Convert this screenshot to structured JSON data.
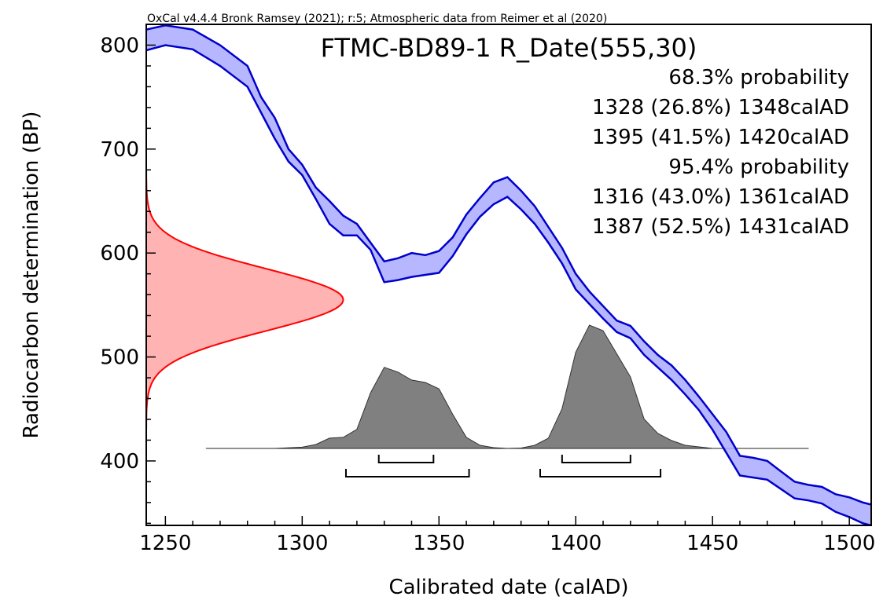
{
  "chart_data": {
    "type": "area",
    "header_note": "OxCal v4.4.4 Bronk Ramsey (2021); r:5; Atmospheric data from Reimer et al (2020)",
    "title": "FTMC-BD89-1 R_Date(555,30)",
    "xlabel": "Calibrated date (calAD)",
    "ylabel": "Radiocarbon determination (BP)",
    "xlim": [
      1243,
      1508
    ],
    "ylim": [
      338,
      820
    ],
    "x_ticks": [
      1250,
      1300,
      1350,
      1400,
      1450,
      1500
    ],
    "y_ticks": [
      400,
      500,
      600,
      700,
      800
    ],
    "probability_summary": [
      "68.3% probability",
      "1328 (26.8%) 1348calAD",
      "1395 (41.5%) 1420calAD",
      "95.4% probability",
      "1316 (43.0%) 1361calAD",
      "1387 (52.5%) 1431calAD"
    ],
    "ranges_68": [
      [
        1328,
        1348
      ],
      [
        1395,
        1420
      ]
    ],
    "ranges_95": [
      [
        1316,
        1361
      ],
      [
        1387,
        1431
      ]
    ],
    "measurement": {
      "mean_bp": 555,
      "sigma": 30,
      "color": "#ff0000",
      "fill": "#ffb3b3"
    },
    "calibration_curve": {
      "color": "#0000cc",
      "fill": "#aaaaff",
      "x": [
        1243,
        1250,
        1260,
        1270,
        1280,
        1285,
        1290,
        1295,
        1300,
        1305,
        1310,
        1315,
        1320,
        1325,
        1330,
        1335,
        1340,
        1345,
        1350,
        1355,
        1360,
        1365,
        1370,
        1375,
        1380,
        1385,
        1390,
        1395,
        1400,
        1405,
        1410,
        1415,
        1420,
        1425,
        1430,
        1435,
        1440,
        1445,
        1450,
        1455,
        1460,
        1465,
        1470,
        1475,
        1480,
        1485,
        1490,
        1495,
        1500,
        1505,
        1508
      ],
      "upper": [
        815,
        819,
        815,
        800,
        780,
        750,
        730,
        700,
        685,
        663,
        650,
        636,
        628,
        610,
        592,
        595,
        600,
        598,
        602,
        615,
        637,
        653,
        668,
        673,
        660,
        645,
        625,
        605,
        580,
        563,
        549,
        535,
        530,
        515,
        502,
        492,
        478,
        462,
        445,
        428,
        405,
        403,
        400,
        390,
        380,
        377,
        375,
        368,
        365,
        360,
        358
      ],
      "lower": [
        795,
        800,
        796,
        780,
        760,
        735,
        710,
        688,
        675,
        652,
        628,
        617,
        617,
        603,
        572,
        574,
        577,
        579,
        581,
        597,
        618,
        635,
        647,
        654,
        642,
        628,
        610,
        590,
        565,
        551,
        537,
        524,
        518,
        502,
        490,
        478,
        464,
        449,
        430,
        408,
        386,
        384,
        382,
        373,
        364,
        362,
        359,
        351,
        346,
        340,
        338
      ]
    },
    "posterior": {
      "color": "#808080",
      "x": [
        1265,
        1290,
        1300,
        1305,
        1310,
        1315,
        1320,
        1325,
        1330,
        1335,
        1340,
        1345,
        1350,
        1355,
        1360,
        1365,
        1370,
        1375,
        1380,
        1385,
        1390,
        1395,
        1400,
        1405,
        1410,
        1415,
        1420,
        1425,
        1430,
        1435,
        1440,
        1450,
        1460,
        1485
      ],
      "density": [
        0,
        0,
        1.6,
        5,
        13,
        14,
        24,
        70,
        102,
        96,
        86,
        83,
        75,
        43,
        14,
        4,
        1,
        0,
        0.5,
        4,
        13,
        50,
        121,
        155,
        148,
        119,
        90,
        37,
        19,
        10,
        4,
        0,
        0,
        0
      ]
    }
  }
}
